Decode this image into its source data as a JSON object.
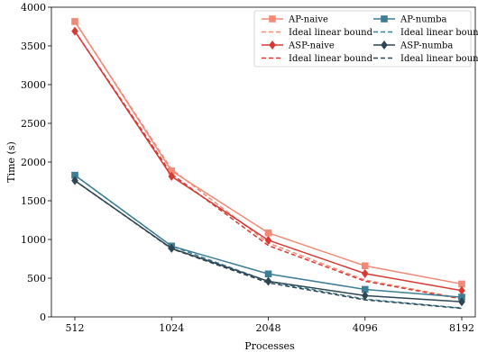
{
  "chart_data": {
    "type": "line",
    "xlabel": "Processes",
    "ylabel": "Time (s)",
    "x": [
      512,
      1024,
      2048,
      4096,
      8192
    ],
    "x_scale": "log2",
    "x_ticks": [
      "512",
      "1024",
      "2048",
      "4096",
      "8192"
    ],
    "ylim": [
      0,
      4000
    ],
    "y_ticks": [
      "0",
      "500",
      "1000",
      "1500",
      "2000",
      "2500",
      "3000",
      "3500",
      "4000"
    ],
    "grid": false,
    "legend_position": "top-right",
    "legend_columns": 2,
    "series": [
      {
        "name": "AP-naive",
        "style": "solid",
        "marker": "square",
        "color": "#f08a76",
        "values": [
          3815,
          1885,
          1085,
          660,
          425
        ]
      },
      {
        "name": "Ideal linear bound",
        "style": "dashed",
        "marker": "none",
        "color": "#f08a76",
        "values": [
          3815,
          1907,
          954,
          477,
          238
        ]
      },
      {
        "name": "ASP-naive",
        "style": "solid",
        "marker": "diamond",
        "color": "#d63a35",
        "values": [
          3690,
          1815,
          990,
          560,
          340
        ]
      },
      {
        "name": "Ideal linear bound",
        "style": "dashed",
        "marker": "none",
        "color": "#d63a35",
        "values": [
          3690,
          1845,
          922,
          461,
          231
        ]
      },
      {
        "name": "AP-numba",
        "style": "solid",
        "marker": "square",
        "color": "#3d7d96",
        "values": [
          1830,
          915,
          555,
          355,
          255
        ]
      },
      {
        "name": "Ideal linear bound",
        "style": "dashed",
        "marker": "none",
        "color": "#3d7d96",
        "values": [
          1830,
          915,
          458,
          229,
          114
        ]
      },
      {
        "name": "ASP-numba",
        "style": "solid",
        "marker": "diamond",
        "color": "#2e4552",
        "values": [
          1760,
          885,
          460,
          275,
          195
        ]
      },
      {
        "name": "Ideal linear bound",
        "style": "dashed",
        "marker": "none",
        "color": "#2e4552",
        "values": [
          1760,
          880,
          440,
          220,
          110
        ]
      }
    ]
  }
}
